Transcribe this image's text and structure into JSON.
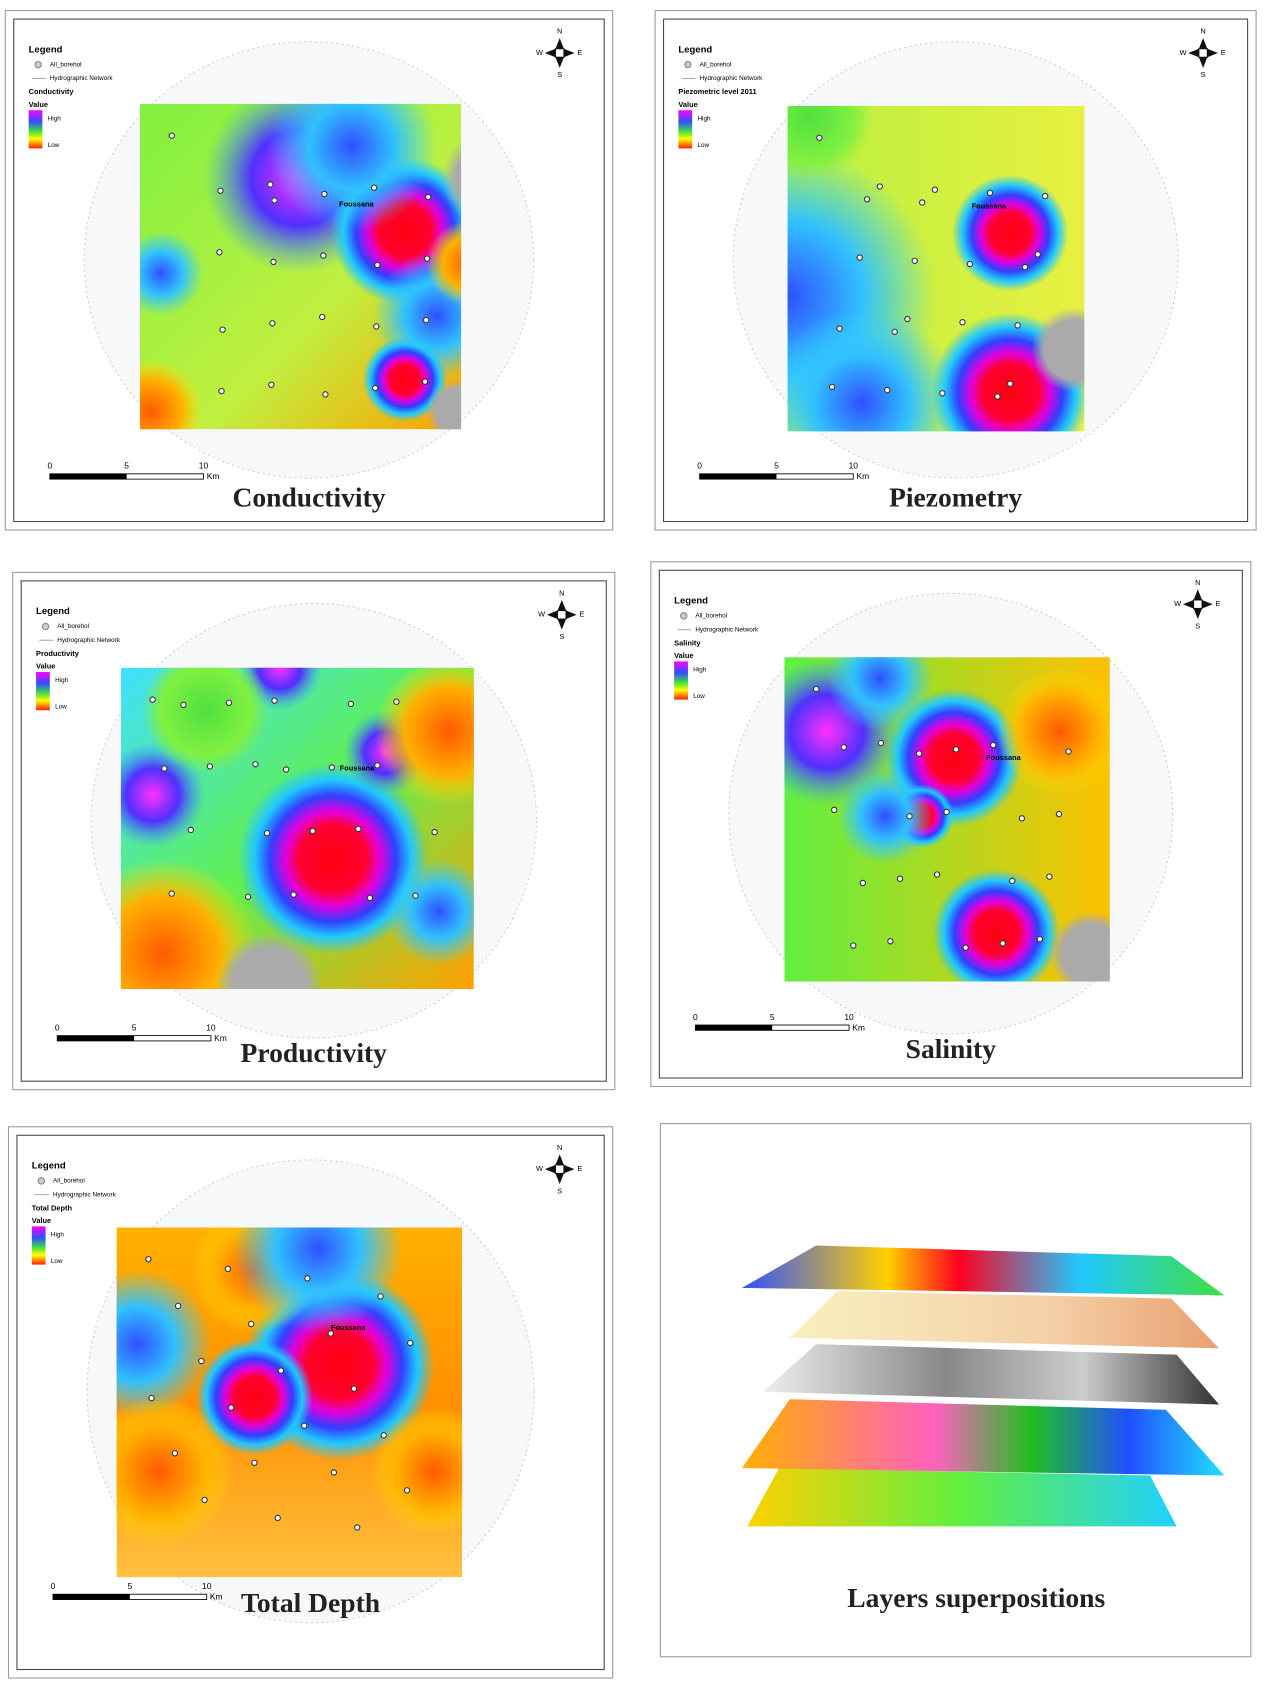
{
  "panels": [
    {
      "title": "Conductivity",
      "legend": {
        "title": "Legend",
        "items": [
          "All_borehol",
          "Hydrographic Network"
        ],
        "layer": "Conductivity",
        "value": "Value",
        "high": "High",
        "low": "Low"
      },
      "place": "Foussana",
      "scale": [
        0,
        5,
        10
      ],
      "unit": "Km",
      "compass": [
        "N",
        "W",
        "E",
        "S"
      ]
    },
    {
      "title": "Piezometry",
      "legend": {
        "title": "Legend",
        "items": [
          "All_borehol",
          "Hydrographic Network"
        ],
        "layer": "Piezometric level 2011",
        "value": "Value",
        "high": "High",
        "low": "Low"
      },
      "place": "Foussana",
      "scale": [
        0,
        5,
        10
      ],
      "unit": "Km",
      "compass": [
        "N",
        "W",
        "E",
        "S"
      ]
    },
    {
      "title": "Productivity",
      "legend": {
        "title": "Legend",
        "items": [
          "All_borehol",
          "Hydrographic Network"
        ],
        "layer": "Productivity",
        "value": "Value",
        "high": "High",
        "low": "Low"
      },
      "place": "Foussana",
      "scale": [
        0,
        5,
        10
      ],
      "unit": "Km",
      "compass": [
        "N",
        "W",
        "E",
        "S"
      ]
    },
    {
      "title": "Salinity",
      "legend": {
        "title": "Legend",
        "items": [
          "All_borehol",
          "Hydrographic Network"
        ],
        "layer": "Salinity",
        "value": "Value",
        "high": "High",
        "low": "Low"
      },
      "place": "Foussana",
      "scale": [
        0,
        5,
        10
      ],
      "unit": "Km",
      "compass": [
        "N",
        "W",
        "E",
        "S"
      ]
    },
    {
      "title": "Total Depth",
      "legend": {
        "title": "Legend",
        "items": [
          "All_borehol",
          "Hydrographic Network"
        ],
        "layer": "Total Depth",
        "value": "Value",
        "high": "High",
        "low": "Low"
      },
      "place": "Foussana",
      "scale": [
        0,
        5,
        10
      ],
      "unit": "Km",
      "compass": [
        "N",
        "W",
        "E",
        "S"
      ]
    }
  ],
  "stack": {
    "title": "Layers superpositions"
  }
}
